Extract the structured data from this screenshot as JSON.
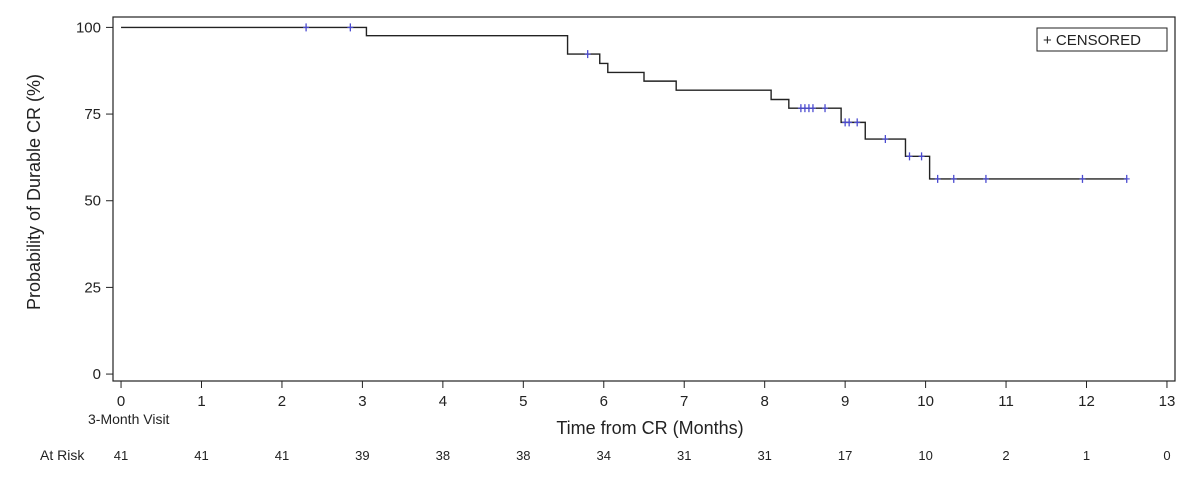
{
  "chart_data": {
    "type": "line",
    "curve": "step",
    "xlabel": "Time from CR (Months)",
    "ylabel": "Probability of Durable CR (%)",
    "xlim": [
      -0.1,
      13.1
    ],
    "ylim": [
      -2,
      103
    ],
    "x_ticks": [
      0,
      1,
      2,
      3,
      4,
      5,
      6,
      7,
      8,
      9,
      10,
      11,
      12,
      13
    ],
    "y_ticks": [
      0,
      25,
      50,
      75,
      100
    ],
    "grid": false,
    "legend": {
      "label": "+ CENSORED",
      "placement": "top-right"
    },
    "series": [
      {
        "color": "#222222",
        "censor_color": "#4b4bd1",
        "steps": [
          {
            "x": 0,
            "y": 100
          },
          {
            "x": 3.05,
            "y": 97.6
          },
          {
            "x": 5.55,
            "y": 92.3
          },
          {
            "x": 5.95,
            "y": 89.6
          },
          {
            "x": 6.05,
            "y": 87.0
          },
          {
            "x": 6.5,
            "y": 84.5
          },
          {
            "x": 6.9,
            "y": 81.9
          },
          {
            "x": 8.08,
            "y": 79.2
          },
          {
            "x": 8.3,
            "y": 76.7
          },
          {
            "x": 8.95,
            "y": 72.6
          },
          {
            "x": 9.25,
            "y": 67.8
          },
          {
            "x": 9.75,
            "y": 62.8
          },
          {
            "x": 10.05,
            "y": 56.3
          },
          {
            "x": 12.5,
            "y": 56.3
          }
        ],
        "censored": [
          {
            "x": 2.3,
            "y": 100
          },
          {
            "x": 2.85,
            "y": 100
          },
          {
            "x": 5.8,
            "y": 92.3
          },
          {
            "x": 8.45,
            "y": 76.7
          },
          {
            "x": 8.5,
            "y": 76.7
          },
          {
            "x": 8.55,
            "y": 76.7
          },
          {
            "x": 8.6,
            "y": 76.7
          },
          {
            "x": 8.75,
            "y": 76.7
          },
          {
            "x": 9.0,
            "y": 72.6
          },
          {
            "x": 9.05,
            "y": 72.6
          },
          {
            "x": 9.15,
            "y": 72.6
          },
          {
            "x": 9.5,
            "y": 67.8
          },
          {
            "x": 9.8,
            "y": 62.8
          },
          {
            "x": 9.95,
            "y": 62.8
          },
          {
            "x": 10.15,
            "y": 56.3
          },
          {
            "x": 10.35,
            "y": 56.3
          },
          {
            "x": 10.75,
            "y": 56.3
          },
          {
            "x": 11.95,
            "y": 56.3
          },
          {
            "x": 12.5,
            "y": 56.3
          }
        ]
      }
    ],
    "annotation": {
      "text": "3-Month Visit",
      "x": 0
    },
    "at_risk": {
      "label": "At Risk",
      "values": [
        41,
        41,
        41,
        39,
        38,
        38,
        34,
        31,
        31,
        17,
        10,
        2,
        1,
        0
      ]
    }
  }
}
